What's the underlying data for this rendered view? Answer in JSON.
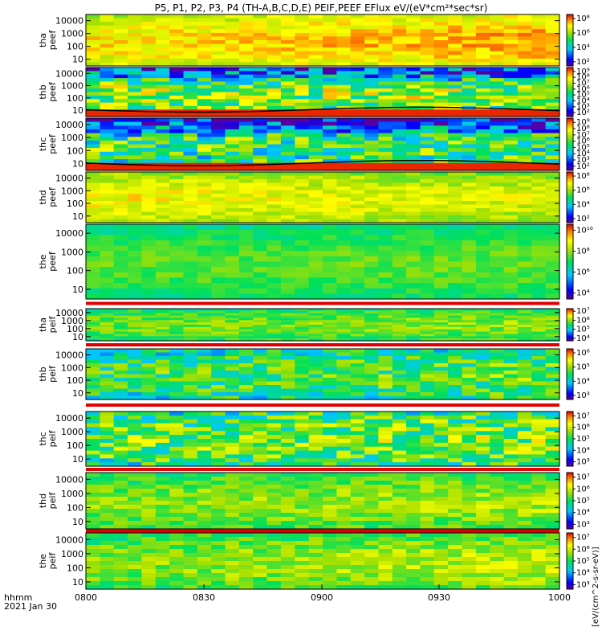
{
  "chart_data": {
    "type": "heatmap",
    "title": "P5, P1, P2, P3, P4 (TH-A,B,C,D,E) PEIF,PEEF EFlux eV/(eV*cm²*sec*sr)",
    "colorbar_unit_label": "[eV/(cm^2-s-sr-eV)]",
    "x_axis": {
      "range": [
        "0800",
        "1000"
      ],
      "ticks": [
        "0800",
        "0830",
        "0900",
        "0930",
        "1000"
      ],
      "label_line1": "hhmm",
      "label_line2": "2021 Jan 30"
    },
    "y_ticks": [
      "10000",
      "1000",
      "100",
      "10"
    ],
    "y_scale": "log",
    "panels": [
      {
        "id": "tha-peef",
        "label1": "tha",
        "label2": "peef",
        "cb_ticks": [
          "10⁸",
          "10⁶",
          "10⁴",
          "10²"
        ],
        "base": 0.72,
        "trend": 0.08,
        "noise": 0.08,
        "overlay": null
      },
      {
        "id": "thb-peef",
        "label1": "thb",
        "label2": "peef",
        "cb_ticks": [
          "10⁹",
          "10⁸",
          "10⁷",
          "10⁶",
          "10⁵",
          "10⁴",
          "10³",
          "10²"
        ],
        "base": 0.55,
        "trend": 0.0,
        "noise": 0.25,
        "overlay": "thb"
      },
      {
        "id": "thc-peef",
        "label1": "thc",
        "label2": "peef",
        "cb_ticks": [
          "10⁹",
          "10⁸",
          "10⁷",
          "10⁶",
          "10⁵",
          "10⁴",
          "10³",
          "10²"
        ],
        "base": 0.45,
        "trend": 0.0,
        "noise": 0.25,
        "overlay": "thc"
      },
      {
        "id": "thd-peef",
        "label1": "thd",
        "label2": "peef",
        "cb_ticks": [
          "10⁸",
          "10⁶",
          "10⁴",
          "10²"
        ],
        "base": 0.7,
        "trend": -0.05,
        "noise": 0.08,
        "overlay": null
      },
      {
        "id": "the-peef",
        "label1": "the",
        "label2": "peef",
        "cb_ticks": [
          "10¹⁰",
          "10⁸",
          "10⁶",
          "10⁴"
        ],
        "base": 0.5,
        "trend": 0.02,
        "noise": 0.06,
        "overlay": null
      },
      {
        "id": "tha-peif",
        "label1": "tha",
        "label2": "peif",
        "cb_ticks": [
          "10⁷",
          "10⁶",
          "10⁵",
          "10⁴"
        ],
        "base": 0.52,
        "trend": 0.05,
        "noise": 0.1,
        "overlay": null
      },
      {
        "id": "thb-peif",
        "label1": "thb",
        "label2": "peif",
        "cb_ticks": [
          "10⁶",
          "10⁵",
          "10⁴",
          "10³"
        ],
        "base": 0.45,
        "trend": 0.05,
        "noise": 0.18,
        "overlay": null
      },
      {
        "id": "thc-peif",
        "label1": "thc",
        "label2": "peif",
        "cb_ticks": [
          "10⁷",
          "10⁶",
          "10⁵",
          "10⁴",
          "10³"
        ],
        "base": 0.5,
        "trend": 0.05,
        "noise": 0.22,
        "overlay": null
      },
      {
        "id": "thd-peif",
        "label1": "thd",
        "label2": "peif",
        "cb_ticks": [
          "10⁷",
          "10⁶",
          "10⁵",
          "10⁴",
          "10³"
        ],
        "base": 0.55,
        "trend": 0.05,
        "noise": 0.1,
        "overlay": null
      },
      {
        "id": "the-peif",
        "label1": "the",
        "label2": "peif",
        "cb_ticks": [
          "10⁷",
          "10⁶",
          "10⁵",
          "10⁴",
          "10³"
        ],
        "base": 0.55,
        "trend": 0.08,
        "noise": 0.1,
        "overlay": null
      }
    ]
  }
}
